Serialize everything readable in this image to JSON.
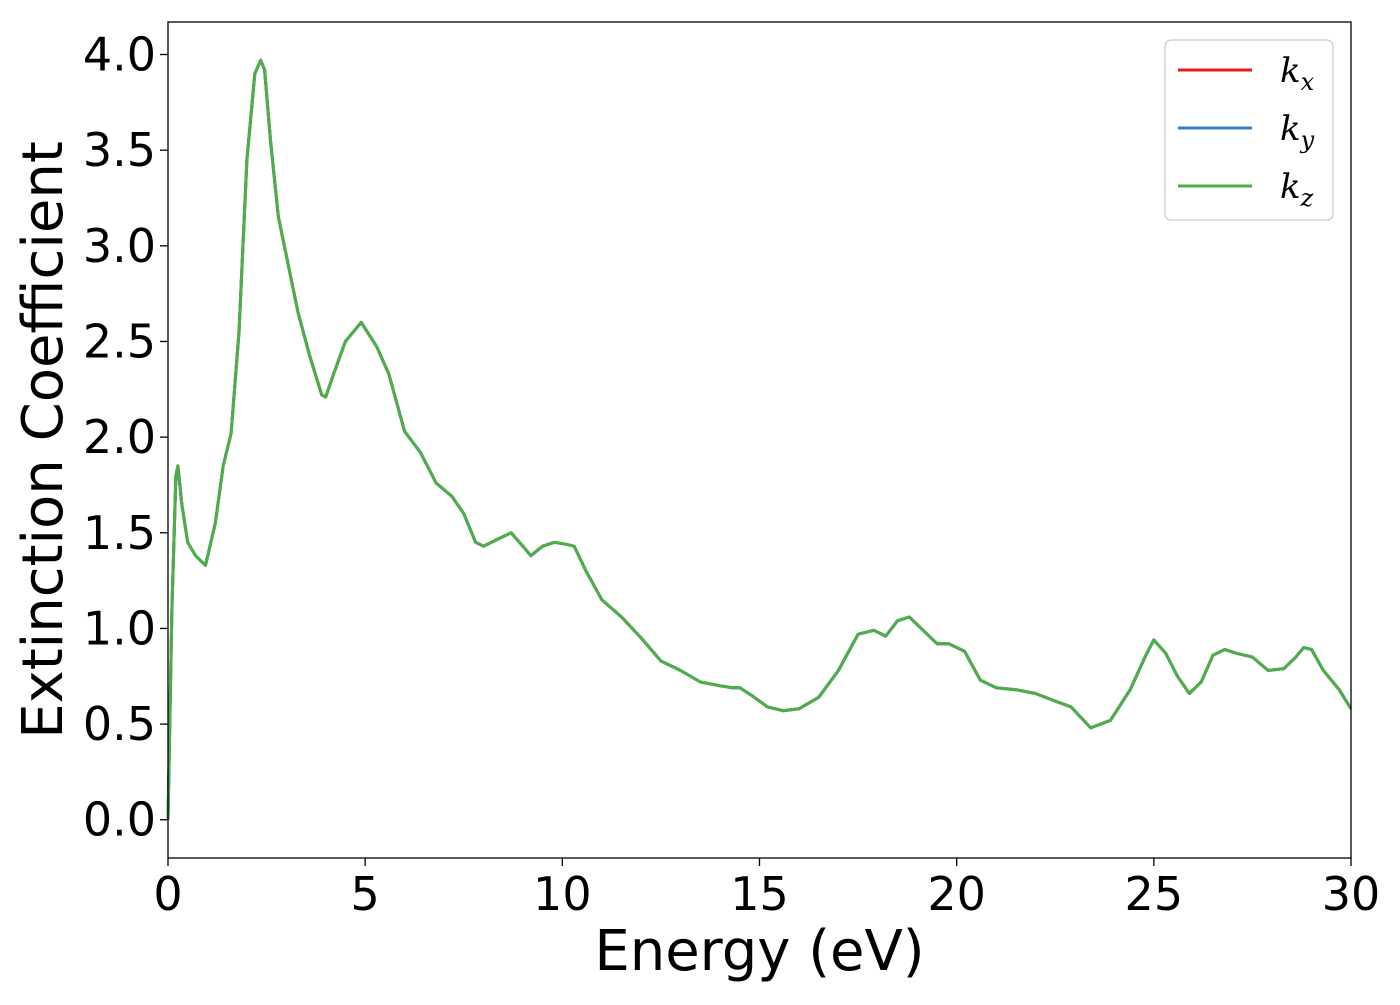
{
  "chart_data": {
    "type": "line",
    "title": "",
    "xlabel": "Energy (eV)",
    "ylabel": "Extinction Coefficient",
    "xlim": [
      0,
      30
    ],
    "ylim": [
      -0.2,
      4.17
    ],
    "xticks": [
      0,
      5,
      10,
      15,
      20,
      25,
      30
    ],
    "xtick_labels": [
      "0",
      "5",
      "10",
      "15",
      "20",
      "25",
      "30"
    ],
    "yticks": [
      0.0,
      0.5,
      1.0,
      1.5,
      2.0,
      2.5,
      3.0,
      3.5,
      4.0
    ],
    "ytick_labels": [
      "0.0",
      "0.5",
      "1.0",
      "1.5",
      "2.0",
      "2.5",
      "3.0",
      "3.5",
      "4.0"
    ],
    "grid": false,
    "legend_position": "top-right",
    "x": [
      0.0,
      0.1,
      0.2,
      0.25,
      0.35,
      0.5,
      0.7,
      0.95,
      1.2,
      1.4,
      1.6,
      1.8,
      2.0,
      2.2,
      2.35,
      2.45,
      2.6,
      2.8,
      3.0,
      3.3,
      3.6,
      3.9,
      4.0,
      4.2,
      4.5,
      4.9,
      5.3,
      5.6,
      6.0,
      6.4,
      6.8,
      7.2,
      7.5,
      7.8,
      8.0,
      8.3,
      8.7,
      9.0,
      9.2,
      9.5,
      9.8,
      10.1,
      10.3,
      10.6,
      11.0,
      11.5,
      12.0,
      12.5,
      13.0,
      13.5,
      14.0,
      14.3,
      14.5,
      14.8,
      15.2,
      15.6,
      16.0,
      16.5,
      17.0,
      17.5,
      17.9,
      18.2,
      18.5,
      18.8,
      19.1,
      19.5,
      19.8,
      20.2,
      20.6,
      21.0,
      21.5,
      22.0,
      22.5,
      22.9,
      23.4,
      23.9,
      24.4,
      24.8,
      25.0,
      25.3,
      25.6,
      25.9,
      26.2,
      26.5,
      26.8,
      27.1,
      27.5,
      27.9,
      28.3,
      28.6,
      28.8,
      29.0,
      29.3,
      29.7,
      30.0
    ],
    "series": [
      {
        "name": "k_x",
        "color": "#e41a1c",
        "values": [
          0.0,
          1.1,
          1.8,
          1.85,
          1.65,
          1.45,
          1.38,
          1.33,
          1.55,
          1.85,
          2.02,
          2.55,
          3.45,
          3.9,
          3.97,
          3.92,
          3.55,
          3.15,
          2.95,
          2.65,
          2.42,
          2.22,
          2.21,
          2.33,
          2.5,
          2.6,
          2.47,
          2.33,
          2.03,
          1.92,
          1.76,
          1.69,
          1.6,
          1.45,
          1.43,
          1.46,
          1.5,
          1.43,
          1.38,
          1.43,
          1.45,
          1.44,
          1.43,
          1.3,
          1.15,
          1.06,
          0.95,
          0.83,
          0.78,
          0.72,
          0.7,
          0.69,
          0.69,
          0.65,
          0.59,
          0.57,
          0.58,
          0.64,
          0.78,
          0.97,
          0.99,
          0.96,
          1.04,
          1.06,
          1.0,
          0.92,
          0.92,
          0.88,
          0.73,
          0.69,
          0.68,
          0.66,
          0.62,
          0.59,
          0.48,
          0.52,
          0.68,
          0.86,
          0.94,
          0.87,
          0.75,
          0.66,
          0.72,
          0.86,
          0.89,
          0.87,
          0.85,
          0.78,
          0.79,
          0.85,
          0.9,
          0.89,
          0.78,
          0.68,
          0.58
        ]
      },
      {
        "name": "k_y",
        "color": "#377eb8",
        "values": [
          0.0,
          1.1,
          1.8,
          1.85,
          1.65,
          1.45,
          1.38,
          1.33,
          1.55,
          1.85,
          2.02,
          2.55,
          3.45,
          3.9,
          3.97,
          3.92,
          3.55,
          3.15,
          2.95,
          2.65,
          2.42,
          2.22,
          2.21,
          2.33,
          2.5,
          2.6,
          2.47,
          2.33,
          2.03,
          1.92,
          1.76,
          1.69,
          1.6,
          1.45,
          1.43,
          1.46,
          1.5,
          1.43,
          1.38,
          1.43,
          1.45,
          1.44,
          1.43,
          1.3,
          1.15,
          1.06,
          0.95,
          0.83,
          0.78,
          0.72,
          0.7,
          0.69,
          0.69,
          0.65,
          0.59,
          0.57,
          0.58,
          0.64,
          0.78,
          0.97,
          0.99,
          0.96,
          1.04,
          1.06,
          1.0,
          0.92,
          0.92,
          0.88,
          0.73,
          0.69,
          0.68,
          0.66,
          0.62,
          0.59,
          0.48,
          0.52,
          0.68,
          0.86,
          0.94,
          0.87,
          0.75,
          0.66,
          0.72,
          0.86,
          0.89,
          0.87,
          0.85,
          0.78,
          0.79,
          0.85,
          0.9,
          0.89,
          0.78,
          0.68,
          0.58
        ]
      },
      {
        "name": "k_z",
        "color": "#4daf4a",
        "values": [
          0.0,
          1.1,
          1.8,
          1.85,
          1.65,
          1.45,
          1.38,
          1.33,
          1.55,
          1.85,
          2.02,
          2.55,
          3.45,
          3.9,
          3.97,
          3.92,
          3.55,
          3.15,
          2.95,
          2.65,
          2.42,
          2.22,
          2.21,
          2.33,
          2.5,
          2.6,
          2.47,
          2.33,
          2.03,
          1.92,
          1.76,
          1.69,
          1.6,
          1.45,
          1.43,
          1.46,
          1.5,
          1.43,
          1.38,
          1.43,
          1.45,
          1.44,
          1.43,
          1.3,
          1.15,
          1.06,
          0.95,
          0.83,
          0.78,
          0.72,
          0.7,
          0.69,
          0.69,
          0.65,
          0.59,
          0.57,
          0.58,
          0.64,
          0.78,
          0.97,
          0.99,
          0.96,
          1.04,
          1.06,
          1.0,
          0.92,
          0.92,
          0.88,
          0.73,
          0.69,
          0.68,
          0.66,
          0.62,
          0.59,
          0.48,
          0.52,
          0.68,
          0.86,
          0.94,
          0.87,
          0.75,
          0.66,
          0.72,
          0.86,
          0.89,
          0.87,
          0.85,
          0.78,
          0.79,
          0.85,
          0.9,
          0.89,
          0.78,
          0.68,
          0.58
        ]
      }
    ],
    "legend": [
      {
        "symbol": "k",
        "subscript": "x",
        "color": "#e41a1c"
      },
      {
        "symbol": "k",
        "subscript": "y",
        "color": "#377eb8"
      },
      {
        "symbol": "k",
        "subscript": "z",
        "color": "#4daf4a"
      }
    ]
  }
}
